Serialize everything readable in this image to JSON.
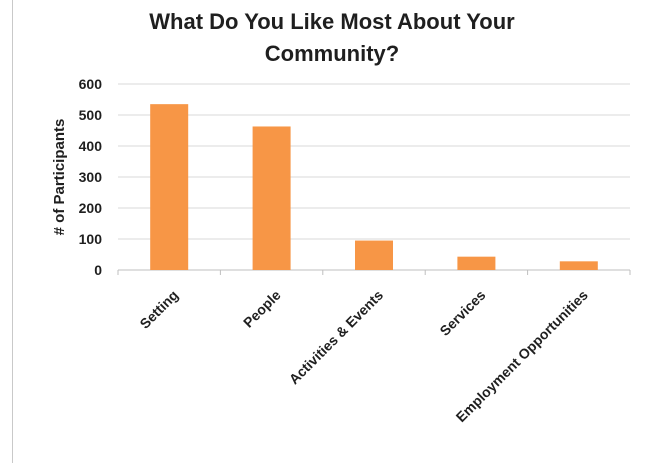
{
  "chart_data": {
    "type": "bar",
    "title_lines": [
      "What Do You Like Most About Your",
      "Community?"
    ],
    "categories": [
      "Setting",
      "People",
      "Activities & Events",
      "Services",
      "Employment Opportunities"
    ],
    "values": [
      535,
      463,
      95,
      43,
      28
    ],
    "ylabel": "# of Participants",
    "xlabel": "",
    "ylim": [
      0,
      600
    ],
    "yticks": [
      "0",
      "100",
      "200",
      "300",
      "400",
      "500",
      "600"
    ],
    "grid": true,
    "legend": "none",
    "bar_color": "#f79646",
    "grid_color": "#d9d9d9"
  },
  "artifact": {
    "left_edge_glyph": ")"
  }
}
